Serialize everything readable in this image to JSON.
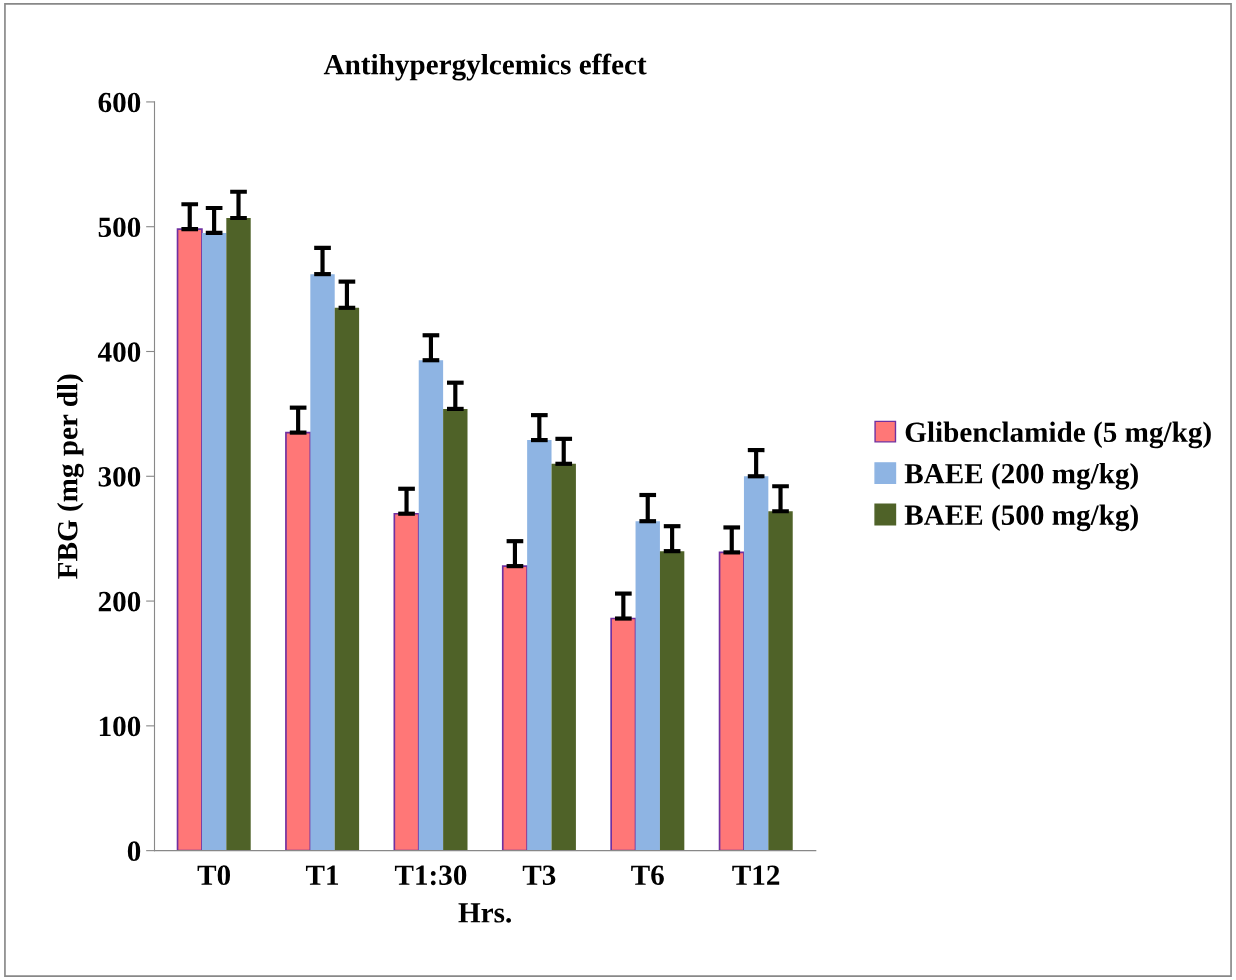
{
  "chart_data": {
    "type": "bar",
    "title": "Antihypergylcemics effect",
    "xlabel": "Hrs.",
    "ylabel": "FBG (mg per dl)",
    "categories": [
      "T0",
      "T1",
      "T1:30",
      "T3",
      "T6",
      "T12"
    ],
    "series": [
      {
        "name": "Glibenclamide (5 mg/kg)",
        "color": "#ff7777",
        "values": [
          498,
          335,
          270,
          228,
          186,
          239
        ],
        "errors": [
          [
            498,
            518
          ],
          [
            335,
            355
          ],
          [
            270,
            290
          ],
          [
            228,
            248
          ],
          [
            186,
            206
          ],
          [
            239,
            259
          ]
        ]
      },
      {
        "name": "BAEE (200 mg/kg)",
        "color": "#8eb4e3",
        "values": [
          495,
          462,
          393,
          329,
          264,
          300
        ],
        "errors": [
          [
            495,
            515
          ],
          [
            462,
            483
          ],
          [
            393,
            413
          ],
          [
            329,
            349
          ],
          [
            264,
            285
          ],
          [
            300,
            321
          ]
        ]
      },
      {
        "name": "BAEE (500 mg/kg)",
        "color": "#4f6228",
        "values": [
          507,
          435,
          354,
          310,
          240,
          272
        ],
        "errors": [
          [
            507,
            528
          ],
          [
            435,
            456
          ],
          [
            354,
            375
          ],
          [
            310,
            330
          ],
          [
            240,
            260
          ],
          [
            272,
            292
          ]
        ]
      }
    ],
    "ylim": [
      0,
      600
    ],
    "yticks": [
      0,
      100,
      200,
      300,
      400,
      500,
      600
    ],
    "grid": false,
    "legend": "right"
  }
}
